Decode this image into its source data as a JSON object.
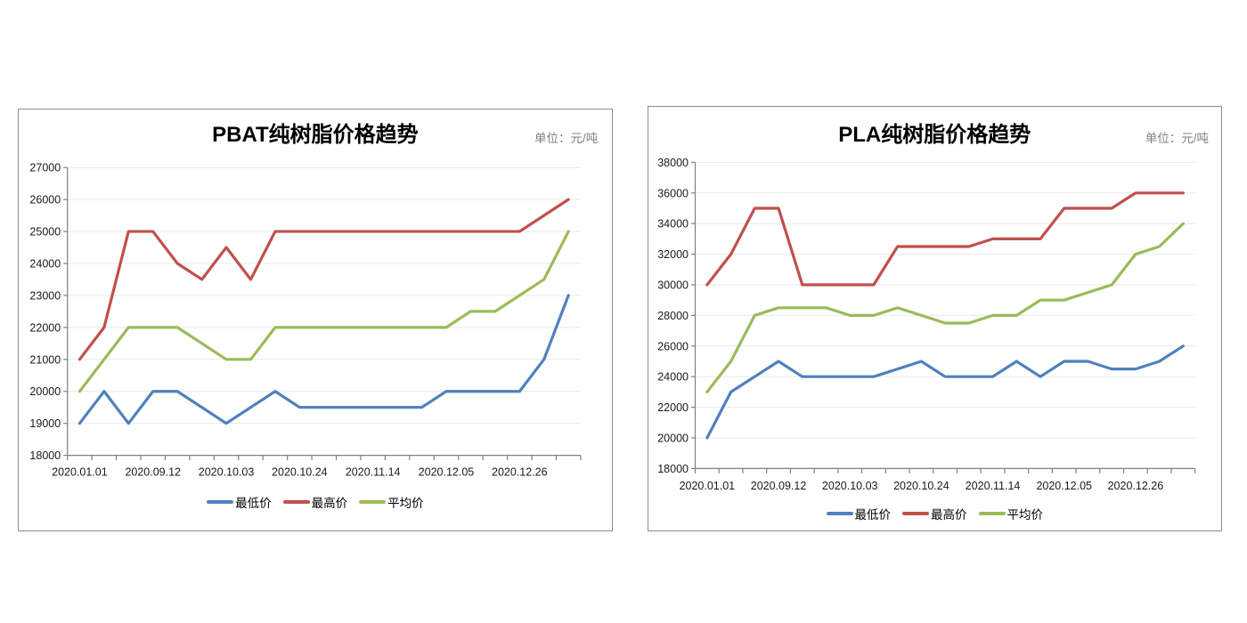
{
  "page": {
    "background": "#ffffff"
  },
  "styles": {
    "axis_color": "#808080",
    "grid_color": "#E9E9E9",
    "tick_label_color": "#1A1A1A",
    "title_color": "#000000",
    "unit_color": "#808080",
    "panel_border_color": "#8C8C8C",
    "series_colors": {
      "min": "#4F81BD",
      "max": "#C0504D",
      "avg": "#9BBB59"
    }
  },
  "chart_data": [
    {
      "type": "line",
      "title": "PBAT纯树脂价格趋势",
      "unit_note": "单位：元/吨",
      "x_tick_labels": [
        "2020.01.01",
        "2020.09.12",
        "2020.10.03",
        "2020.10.24",
        "2020.11.14",
        "2020.12.05",
        "2020.12.26"
      ],
      "x_label_every": 3,
      "n_points": 21,
      "ylim": [
        18000,
        27000
      ],
      "y_step": 1000,
      "grid": "horizontal",
      "legend_position": "bottom",
      "series": [
        {
          "name": "最低价",
          "color": "#4F81BD",
          "values": [
            19000,
            20000,
            19000,
            20000,
            20000,
            19500,
            19000,
            19500,
            20000,
            19500,
            19500,
            19500,
            19500,
            19500,
            19500,
            20000,
            20000,
            20000,
            20000,
            21000,
            23000
          ]
        },
        {
          "name": "最高价",
          "color": "#C0504D",
          "values": [
            21000,
            22000,
            25000,
            25000,
            24000,
            23500,
            24500,
            23500,
            25000,
            25000,
            25000,
            25000,
            25000,
            25000,
            25000,
            25000,
            25000,
            25000,
            25000,
            25500,
            26000
          ]
        },
        {
          "name": "平均价",
          "color": "#9BBB59",
          "values": [
            20000,
            21000,
            22000,
            22000,
            22000,
            21500,
            21000,
            21000,
            22000,
            22000,
            22000,
            22000,
            22000,
            22000,
            22000,
            22000,
            22500,
            22500,
            23000,
            23500,
            25000
          ]
        }
      ]
    },
    {
      "type": "line",
      "title": "PLA纯树脂价格趋势",
      "unit_note": "单位：元/吨",
      "x_tick_labels": [
        "2020.01.01",
        "2020.09.12",
        "2020.10.03",
        "2020.10.24",
        "2020.11.14",
        "2020.12.05",
        "2020.12.26"
      ],
      "x_label_every": 3,
      "n_points": 21,
      "ylim": [
        18000,
        38000
      ],
      "y_step": 2000,
      "grid": "horizontal",
      "legend_position": "bottom",
      "series": [
        {
          "name": "最低价",
          "color": "#4F81BD",
          "values": [
            20000,
            23000,
            24000,
            25000,
            24000,
            24000,
            24000,
            24000,
            24500,
            25000,
            24000,
            24000,
            24000,
            25000,
            24000,
            25000,
            25000,
            24500,
            24500,
            25000,
            26000
          ]
        },
        {
          "name": "最高价",
          "color": "#C0504D",
          "values": [
            30000,
            32000,
            35000,
            35000,
            30000,
            30000,
            30000,
            30000,
            32500,
            32500,
            32500,
            32500,
            33000,
            33000,
            33000,
            35000,
            35000,
            35000,
            36000,
            36000,
            36000
          ]
        },
        {
          "name": "平均价",
          "color": "#9BBB59",
          "values": [
            23000,
            25000,
            28000,
            28500,
            28500,
            28500,
            28000,
            28000,
            28500,
            28000,
            27500,
            27500,
            28000,
            28000,
            29000,
            29000,
            29500,
            30000,
            32000,
            32500,
            34000
          ]
        }
      ]
    }
  ]
}
